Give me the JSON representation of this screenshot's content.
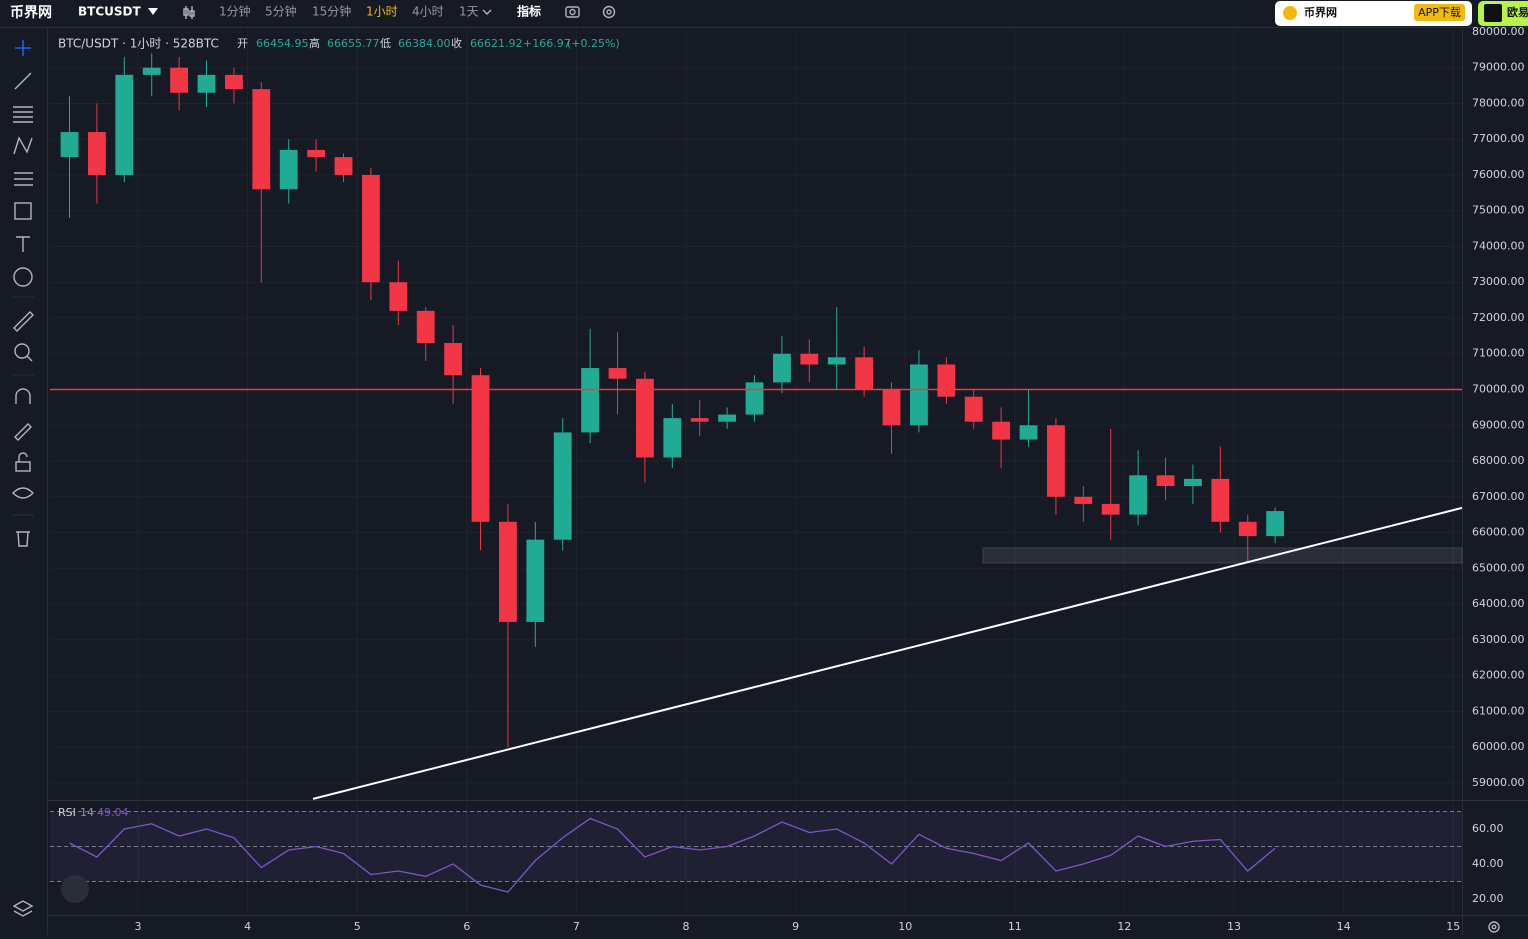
{
  "toolbar": {
    "logo": "币界网",
    "symbol": "BTCUSDT",
    "intervals": [
      "1分钟",
      "5分钟",
      "15分钟",
      "1小时",
      "4小时",
      "1天"
    ],
    "active_interval": 3,
    "indicators": "指标"
  },
  "ad": {
    "brand": "币界网",
    "download": "APP下载",
    "exchange": "欧易"
  },
  "chart_data": [
    {
      "type": "candlestick",
      "title": "BTC/USDT · 1小时 · 528BTC",
      "ohlc_info": {
        "labels": [
          "开",
          "高",
          "低",
          "收"
        ],
        "values": [
          66454.95,
          66655.77,
          {
            "value": 66384,
            "label": "66384.00"
          },
          66621.92
        ],
        "change": {
          "value": 166.97,
          "label": "+166.97"
        },
        "change_pct": {
          "value": 0.25,
          "label": "(+0.25%)"
        }
      },
      "x": [
        2.375,
        2.625,
        2.875,
        3.125,
        3.375,
        3.625,
        3.875,
        4.125,
        4.375,
        4.625,
        4.875,
        5.125,
        5.375,
        5.625,
        5.875,
        6.125,
        6.375,
        6.625,
        6.875,
        7.125,
        7.375,
        7.625,
        7.875,
        8.125,
        8.375,
        8.625,
        8.875,
        9.125,
        9.375,
        9.625,
        9.875,
        10.125,
        10.375,
        10.625,
        10.875,
        11.125,
        11.375,
        11.625,
        11.875,
        12.125,
        12.375,
        12.625,
        12.875,
        13.125,
        13.375
      ],
      "open": [
        76500,
        77200,
        76000,
        78800,
        79000,
        78300,
        78800,
        78400,
        75600,
        76700,
        76500,
        76000,
        73000,
        72200,
        71300,
        70400,
        66300,
        63500,
        65800,
        68800,
        70600,
        70300,
        68100,
        69200,
        69100,
        69300,
        70200,
        71000,
        70700,
        70900,
        70000,
        69000,
        70700,
        69800,
        69100,
        68600,
        69000,
        67000,
        66800,
        66500,
        67600,
        67300,
        67500,
        66300,
        65900
      ],
      "high": [
        78200,
        78000,
        79300,
        79400,
        79300,
        79200,
        79000,
        78600,
        77000,
        77000,
        76600,
        76200,
        73600,
        72300,
        71800,
        70600,
        66800,
        66300,
        69200,
        71700,
        71600,
        70500,
        69600,
        69700,
        69500,
        70400,
        71500,
        71400,
        72300,
        71200,
        70200,
        71100,
        70900,
        70000,
        69500,
        70000,
        69200,
        67300,
        68900,
        68300,
        68100,
        67900,
        68400,
        66500,
        66700
      ],
      "low": [
        74800,
        75200,
        75800,
        78200,
        77800,
        77900,
        78000,
        73000,
        75200,
        76100,
        75800,
        72500,
        71800,
        70800,
        69600,
        65500,
        60000,
        62800,
        65500,
        68500,
        69300,
        67400,
        67800,
        68700,
        68900,
        69100,
        69900,
        70200,
        70000,
        69800,
        68200,
        68800,
        69600,
        68900,
        67800,
        68400,
        66500,
        66300,
        65800,
        66200,
        66900,
        66800,
        66000,
        65200,
        65700
      ],
      "close": [
        77200,
        76000,
        78800,
        79000,
        78300,
        78800,
        78400,
        75600,
        76700,
        76500,
        76000,
        73000,
        72200,
        71300,
        70400,
        66300,
        63500,
        65800,
        68800,
        70600,
        70300,
        68100,
        69200,
        69100,
        69300,
        70200,
        71000,
        70700,
        70900,
        70000,
        69000,
        70700,
        69800,
        69100,
        68600,
        69000,
        67000,
        66800,
        66500,
        67600,
        67300,
        67500,
        66300,
        65900,
        66600
      ],
      "up_color": "#22ab94",
      "down_color": "#f23645",
      "xlim": [
        2.197,
        15.08
      ],
      "xticks": [
        3,
        4,
        5,
        6,
        7,
        8,
        9,
        10,
        11,
        12,
        13,
        14,
        15
      ],
      "ylim": [
        58520,
        80110
      ],
      "yticks": [
        {
          "value": 59000,
          "label": "59000.00"
        },
        {
          "value": 60000,
          "label": "60000.00"
        },
        {
          "value": 61000,
          "label": "61000.00"
        },
        {
          "value": 62000,
          "label": "62000.00"
        },
        {
          "value": 63000,
          "label": "63000.00"
        },
        {
          "value": 64000,
          "label": "64000.00"
        },
        {
          "value": 65000,
          "label": "65000.00"
        },
        {
          "value": 66000,
          "label": "66000.00"
        },
        {
          "value": 67000,
          "label": "67000.00"
        },
        {
          "value": 68000,
          "label": "68000.00"
        },
        {
          "value": 69000,
          "label": "69000.00"
        },
        {
          "value": 70000,
          "label": "70000.00"
        },
        {
          "value": 71000,
          "label": "71000.00"
        },
        {
          "value": 72000,
          "label": "72000.00"
        },
        {
          "value": 73000,
          "label": "73000.00"
        },
        {
          "value": 74000,
          "label": "74000.00"
        },
        {
          "value": 75000,
          "label": "75000.00"
        },
        {
          "value": 76000,
          "label": "76000.00"
        },
        {
          "value": 77000,
          "label": "77000.00"
        },
        {
          "value": 78000,
          "label": "78000.00"
        },
        {
          "value": 79000,
          "label": "79000.00"
        },
        {
          "value": 80000,
          "label": "80000.00"
        }
      ],
      "grid": true,
      "hline": {
        "value": 70000,
        "color": "#f23645"
      },
      "trendline": {
        "x": [
          4.597,
          15.08
        ],
        "y": [
          58552,
          66689
        ],
        "color": "#ffffff"
      },
      "zone": {
        "x": [
          10.71,
          15.08
        ],
        "y": [
          65150,
          65570
        ]
      }
    },
    {
      "type": "line",
      "name": "RSI",
      "period": 14,
      "color": "#7e57c2",
      "x": [
        2.375,
        2.625,
        2.875,
        3.125,
        3.375,
        3.625,
        3.875,
        4.125,
        4.375,
        4.625,
        4.875,
        5.125,
        5.375,
        5.625,
        5.875,
        6.125,
        6.375,
        6.625,
        6.875,
        7.125,
        7.375,
        7.625,
        7.875,
        8.125,
        8.375,
        8.625,
        8.875,
        9.125,
        9.375,
        9.625,
        9.875,
        10.125,
        10.375,
        10.625,
        10.875,
        11.125,
        11.375,
        11.625,
        11.875,
        12.125,
        12.375,
        12.625,
        12.875,
        13.125,
        13.375
      ],
      "values": [
        52,
        44,
        60,
        63,
        56,
        60,
        55,
        38,
        48,
        50,
        46,
        34,
        36,
        33,
        40,
        28,
        24,
        42,
        55,
        66,
        60,
        44,
        50,
        48,
        50,
        56,
        64,
        58,
        60,
        52,
        40,
        57,
        49,
        46,
        42,
        52,
        36,
        40,
        45,
        56,
        50,
        53,
        54,
        36,
        49.04
      ],
      "levels": [
        30,
        50,
        70
      ],
      "xlim": [
        2.197,
        15.08
      ],
      "ylim": [
        10.9,
        73.7
      ],
      "yticks": [
        {
          "value": 20,
          "label": "20.00"
        },
        {
          "value": 40,
          "label": "40.00"
        },
        {
          "value": 60,
          "label": "60.00"
        }
      ]
    }
  ]
}
